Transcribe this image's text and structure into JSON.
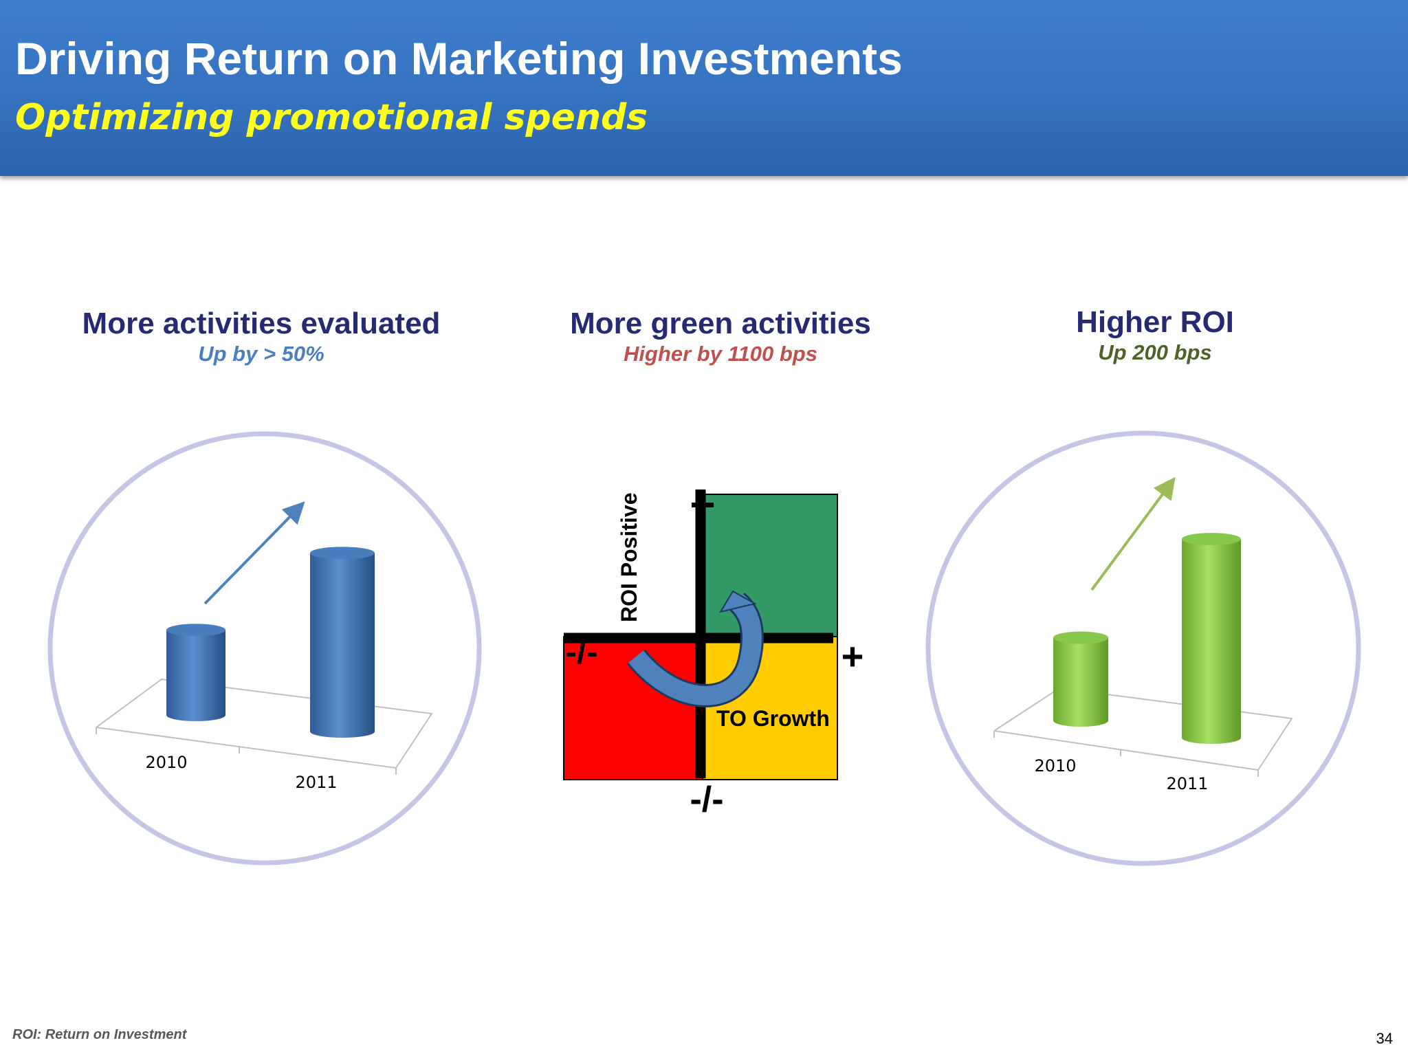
{
  "slide": {
    "title": "Driving Return on Marketing Investments",
    "subtitle": "Optimizing promotional spends",
    "footnote": "ROI: Return on Investment",
    "page_number": "34"
  },
  "panels": [
    {
      "title": "More activities evaluated",
      "subtitle": "Up by > 50%",
      "subtitle_color": "#4a7ebf"
    },
    {
      "title": "More green activities",
      "subtitle": "Higher by 1100 bps",
      "subtitle_color": "#c0504d"
    },
    {
      "title": "Higher ROI",
      "subtitle": "Up 200 bps",
      "subtitle_color": "#4f6228"
    }
  ],
  "colors": {
    "header": "#3572bf",
    "title_text": "#ffffff",
    "subtitle_text": "#ffff1a",
    "blue_bar": "#4f81bd",
    "green_bar": "#92d050",
    "circle_ring": "#c5c6e6",
    "quadrant_red": "#ff0000",
    "quadrant_green": "#339966",
    "quadrant_yellow": "#ffcc00",
    "curved_arrow": "#4f81bd"
  },
  "chart_data": [
    {
      "type": "bar",
      "categories": [
        "2010",
        "2011"
      ],
      "values": [
        1.0,
        2.1
      ],
      "ylim": [
        0,
        2.2
      ],
      "bar_color": "#4f81bd",
      "arrow": "up-right"
    },
    {
      "type": "quadrant",
      "ylabel": "ROI Positive",
      "xlabel": "TO Growth",
      "axis_marks": {
        "top": "+",
        "right": "+",
        "left": "-/-",
        "bottom": "-/-"
      },
      "quadrants": {
        "top_left": "none",
        "top_right": "green",
        "bottom_left": "red",
        "bottom_right": "yellow"
      },
      "arrow": "curved from red quadrant to green quadrant"
    },
    {
      "type": "bar",
      "categories": [
        "2010",
        "2011"
      ],
      "values": [
        1.0,
        2.4
      ],
      "ylim": [
        0,
        2.6
      ],
      "bar_color": "#92d050",
      "arrow": "up-right"
    }
  ]
}
